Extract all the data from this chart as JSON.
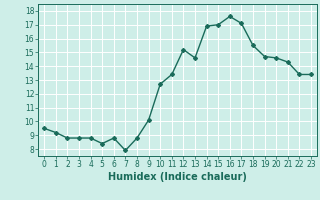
{
  "x": [
    0,
    1,
    2,
    3,
    4,
    5,
    6,
    7,
    8,
    9,
    10,
    11,
    12,
    13,
    14,
    15,
    16,
    17,
    18,
    19,
    20,
    21,
    22,
    23
  ],
  "y": [
    9.5,
    9.2,
    8.8,
    8.8,
    8.8,
    8.4,
    8.8,
    7.9,
    8.8,
    10.1,
    12.7,
    13.4,
    15.2,
    14.6,
    16.9,
    17.0,
    17.6,
    17.1,
    15.5,
    14.7,
    14.6,
    14.3,
    13.4,
    13.4
  ],
  "line_color": "#1a6b5a",
  "marker": "D",
  "marker_size": 2.0,
  "bg_color": "#ceeee8",
  "grid_color": "#ffffff",
  "xlabel": "Humidex (Indice chaleur)",
  "xlim": [
    -0.5,
    23.5
  ],
  "ylim": [
    7.5,
    18.5
  ],
  "yticks": [
    8,
    9,
    10,
    11,
    12,
    13,
    14,
    15,
    16,
    17,
    18
  ],
  "xticks": [
    0,
    1,
    2,
    3,
    4,
    5,
    6,
    7,
    8,
    9,
    10,
    11,
    12,
    13,
    14,
    15,
    16,
    17,
    18,
    19,
    20,
    21,
    22,
    23
  ],
  "tick_label_fontsize": 5.5,
  "xlabel_fontsize": 7.0,
  "label_color": "#1a6b5a",
  "tick_color": "#1a6b5a",
  "linewidth": 1.0
}
